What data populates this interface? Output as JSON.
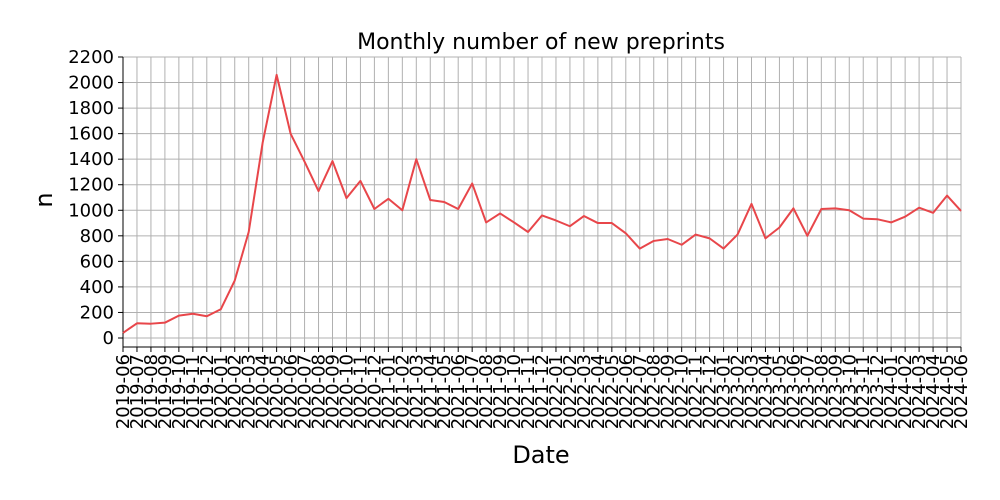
{
  "chart_data": {
    "type": "line",
    "title": "Monthly number of new preprints",
    "xlabel": "Date",
    "ylabel": "n",
    "ylim": [
      0,
      2200
    ],
    "yticks": [
      0,
      200,
      400,
      600,
      800,
      1000,
      1200,
      1400,
      1600,
      1800,
      2000,
      2200
    ],
    "grid": true,
    "line_color": "#e8464a",
    "categories": [
      "2019-06",
      "2019-07",
      "2019-08",
      "2019-09",
      "2019-10",
      "2019-11",
      "2019-12",
      "2020-01",
      "2020-02",
      "2020-03",
      "2020-04",
      "2020-05",
      "2020-06",
      "2020-07",
      "2020-08",
      "2020-09",
      "2020-10",
      "2020-11",
      "2020-12",
      "2021-01",
      "2021-02",
      "2021-03",
      "2021-04",
      "2021-05",
      "2021-06",
      "2021-07",
      "2021-08",
      "2021-09",
      "2021-10",
      "2021-11",
      "2021-12",
      "2022-01",
      "2022-02",
      "2022-03",
      "2022-04",
      "2022-05",
      "2022-06",
      "2022-07",
      "2022-08",
      "2022-09",
      "2022-10",
      "2022-11",
      "2022-12",
      "2023-01",
      "2023-02",
      "2023-03",
      "2023-04",
      "2023-05",
      "2023-06",
      "2023-07",
      "2023-08",
      "2023-09",
      "2023-10",
      "2023-11",
      "2023-12",
      "2024-01",
      "2024-02",
      "2024-03",
      "2024-04",
      "2024-05",
      "2024-06"
    ],
    "tick_labels": [
      "2019-06",
      "2019-07",
      "2019-08",
      "2019-09",
      "2019-10",
      "2019-11",
      "2019-12",
      "2020-01",
      "2020-02",
      "2020-03",
      "2020-04",
      "2020-05",
      "2020-06",
      "2020-07",
      "2020-08",
      "2020-09",
      "2020-10",
      "2020-11",
      "2020-12",
      "2021-01",
      "2021-02",
      "2021-03",
      "2021-04",
      "2021-05",
      "2021-06",
      "2021-07",
      "2021-08",
      "2021-09",
      "2021-10",
      "2021-11",
      "2021-12",
      "2022-01",
      "2022-02",
      "2022-03",
      "2022-04",
      "2022-05",
      "2022-06",
      "2022-07",
      "2022-08",
      "2022-09",
      "2022-10",
      "2022-11",
      "2022-12",
      "2023-01",
      "2023-02",
      "2023-03",
      "2023-04",
      "2023-05",
      "2023-06",
      "2023-07",
      "2023-08",
      "2023-09",
      "2023-10",
      "2023-11",
      "2023-12",
      "2024-01",
      "2024-02",
      "2024-03",
      "2024-04",
      "2024-05",
      "2024-06"
    ],
    "values": [
      40,
      115,
      112,
      120,
      175,
      190,
      170,
      225,
      450,
      830,
      1530,
      2060,
      1600,
      1380,
      1150,
      1385,
      1095,
      1230,
      1010,
      1090,
      1000,
      1400,
      1080,
      1065,
      1010,
      1210,
      905,
      975,
      905,
      830,
      960,
      920,
      875,
      955,
      900,
      900,
      820,
      700,
      760,
      775,
      730,
      810,
      780,
      700,
      810,
      1050,
      780,
      865,
      1015,
      800,
      1010,
      1015,
      1000,
      935,
      930,
      905,
      950,
      1020,
      980,
      1115,
      995
    ]
  }
}
